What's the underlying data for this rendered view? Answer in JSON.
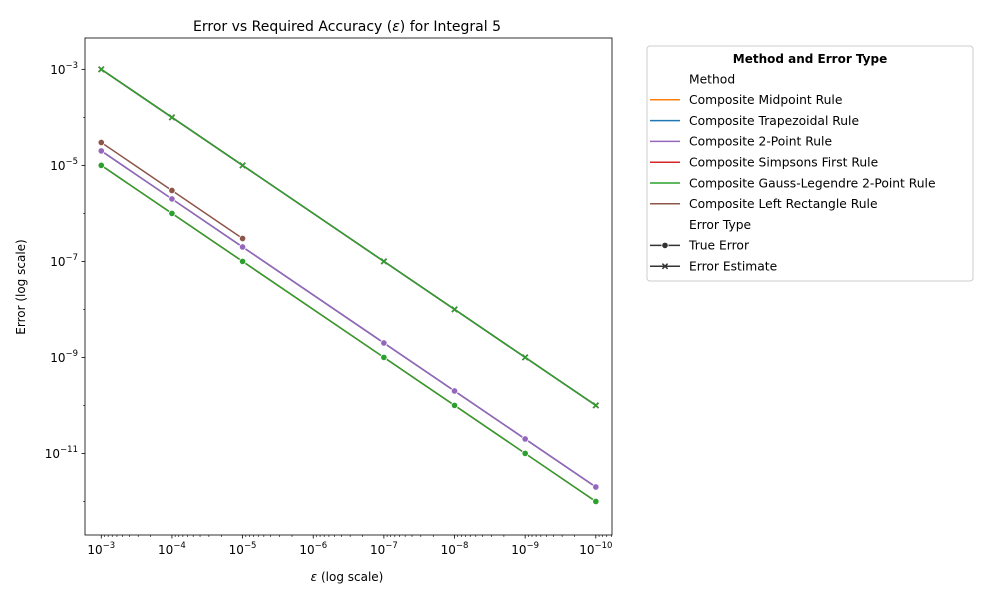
{
  "chart_data": {
    "type": "line",
    "title_pre": "Error vs Required Accuracy (",
    "title_sym": "ε",
    "title_post": ") for Integral 5",
    "xlabel_sym": "ε",
    "xlabel_post": " (log scale)",
    "ylabel": "Error (log scale)",
    "x_scale": "log",
    "x_reversed": true,
    "y_scale": "log",
    "xlim": [
      0.0017,
      5.9e-11
    ],
    "ylim": [
      2e-13,
      0.0045
    ],
    "x_ticks": [
      {
        "base": "10",
        "exp": "−3",
        "value": 0.001
      },
      {
        "base": "10",
        "exp": "−4",
        "value": 0.0001
      },
      {
        "base": "10",
        "exp": "−5",
        "value": 1e-05
      },
      {
        "base": "10",
        "exp": "−6",
        "value": 1e-06
      },
      {
        "base": "10",
        "exp": "−7",
        "value": 1e-07
      },
      {
        "base": "10",
        "exp": "−8",
        "value": 1e-08
      },
      {
        "base": "10",
        "exp": "−9",
        "value": 1e-09
      },
      {
        "base": "10",
        "exp": "−10",
        "value": 1e-10
      }
    ],
    "y_ticks": [
      {
        "base": "10",
        "exp": "−3",
        "value": 0.001
      },
      {
        "base": "10",
        "exp": "−5",
        "value": 1e-05
      },
      {
        "base": "10",
        "exp": "−7",
        "value": 1e-07
      },
      {
        "base": "10",
        "exp": "−9",
        "value": 1e-09
      },
      {
        "base": "10",
        "exp": "−11",
        "value": 1e-11
      }
    ],
    "grid": false,
    "legend": {
      "placement": "outside upper right",
      "title": "Method and Error Type",
      "method_header": "Method",
      "error_type_header": "Error Type",
      "methods": [
        {
          "name": "Composite Midpoint Rule",
          "color": "#ff7f0e"
        },
        {
          "name": "Composite Trapezoidal Rule",
          "color": "#1f77b4"
        },
        {
          "name": "Composite 2-Point Rule",
          "color": "#9467bd"
        },
        {
          "name": "Composite Simpsons First Rule",
          "color": "#d62728"
        },
        {
          "name": "Composite Gauss-Legendre 2-Point Rule",
          "color": "#2ca02c"
        },
        {
          "name": "Composite Left Rectangle Rule",
          "color": "#8c564b"
        }
      ],
      "error_types": [
        {
          "name": "True Error",
          "marker": "circle",
          "color": "#333333"
        },
        {
          "name": "Error Estimate",
          "marker": "x",
          "color": "#333333"
        }
      ]
    },
    "series": [
      {
        "method": "Composite Left Rectangle Rule",
        "error_type": "Error Estimate",
        "color": "#8c564b",
        "marker": "x",
        "x": [
          0.001,
          0.0001,
          1e-05
        ],
        "y": [
          0.001,
          0.0001,
          1e-05
        ]
      },
      {
        "method": "Composite Left Rectangle Rule",
        "error_type": "True Error",
        "color": "#8c564b",
        "marker": "circle",
        "x": [
          0.001,
          0.0001,
          1e-05
        ],
        "y": [
          3e-05,
          3e-06,
          3e-07
        ]
      },
      {
        "method": "Composite Midpoint Rule",
        "error_type": "True Error",
        "color": "#ff7f0e",
        "marker": "circle",
        "x": [
          0.001,
          0.0001,
          1e-05,
          1e-07,
          1e-08,
          1e-09,
          1e-10
        ],
        "y": [
          2e-05,
          2e-06,
          2e-07,
          2e-09,
          2e-10,
          2e-11,
          2e-12
        ]
      },
      {
        "method": "Composite Midpoint Rule",
        "error_type": "Error Estimate",
        "color": "#ff7f0e",
        "marker": "x",
        "x": [
          0.001,
          0.0001,
          1e-05,
          1e-07,
          1e-08,
          1e-09,
          1e-10
        ],
        "y": [
          0.001,
          0.0001,
          1e-05,
          1e-07,
          1e-08,
          1e-09,
          1e-10
        ]
      },
      {
        "method": "Composite Trapezoidal Rule",
        "error_type": "True Error",
        "color": "#1f77b4",
        "marker": "circle",
        "x": [
          0.001,
          0.0001,
          1e-05,
          1e-07,
          1e-08,
          1e-09,
          1e-10
        ],
        "y": [
          2e-05,
          2e-06,
          2e-07,
          2e-09,
          2e-10,
          2e-11,
          2e-12
        ]
      },
      {
        "method": "Composite Trapezoidal Rule",
        "error_type": "Error Estimate",
        "color": "#1f77b4",
        "marker": "x",
        "x": [
          0.001,
          0.0001,
          1e-05,
          1e-07,
          1e-08,
          1e-09,
          1e-10
        ],
        "y": [
          0.001,
          0.0001,
          1e-05,
          1e-07,
          1e-08,
          1e-09,
          1e-10
        ]
      },
      {
        "method": "Composite Simpsons First Rule",
        "error_type": "Error Estimate",
        "color": "#d62728",
        "marker": "x",
        "x": [
          0.001,
          0.0001,
          1e-05,
          1e-07,
          1e-08,
          1e-09,
          1e-10
        ],
        "y": [
          0.001,
          0.0001,
          1e-05,
          1e-07,
          1e-08,
          1e-09,
          1e-10
        ]
      },
      {
        "method": "Composite 2-Point Rule",
        "error_type": "Error Estimate",
        "color": "#9467bd",
        "marker": "x",
        "x": [
          0.001,
          0.0001,
          1e-05,
          1e-07,
          1e-08,
          1e-09,
          1e-10
        ],
        "y": [
          0.001,
          0.0001,
          1e-05,
          1e-07,
          1e-08,
          1e-09,
          1e-10
        ]
      },
      {
        "method": "Composite 2-Point Rule",
        "error_type": "True Error",
        "color": "#9467bd",
        "marker": "circle",
        "x": [
          0.001,
          0.0001,
          1e-05,
          1e-07,
          1e-08,
          1e-09,
          1e-10
        ],
        "y": [
          2e-05,
          2e-06,
          2e-07,
          2e-09,
          2e-10,
          2e-11,
          2e-12
        ]
      },
      {
        "method": "Composite Simpsons First Rule",
        "error_type": "True Error",
        "color": "#d62728",
        "marker": "circle",
        "x": [
          0.001,
          0.0001,
          1e-05,
          1e-07,
          1e-08,
          1e-09,
          1e-10
        ],
        "y": [
          1e-05,
          1e-06,
          1e-07,
          1e-09,
          1e-10,
          1e-11,
          1e-12
        ]
      },
      {
        "method": "Composite Gauss-Legendre 2-Point Rule",
        "error_type": "True Error",
        "color": "#2ca02c",
        "marker": "circle",
        "x": [
          0.001,
          0.0001,
          1e-05,
          1e-07,
          1e-08,
          1e-09,
          1e-10
        ],
        "y": [
          1e-05,
          1e-06,
          1e-07,
          1e-09,
          1e-10,
          1e-11,
          1e-12
        ]
      },
      {
        "method": "Composite Gauss-Legendre 2-Point Rule",
        "error_type": "Error Estimate",
        "color": "#2ca02c",
        "marker": "x",
        "x": [
          0.001,
          0.0001,
          1e-05,
          1e-07,
          1e-08,
          1e-09,
          1e-10
        ],
        "y": [
          0.001,
          0.0001,
          1e-05,
          1e-07,
          1e-08,
          1e-09,
          1e-10
        ]
      }
    ]
  }
}
